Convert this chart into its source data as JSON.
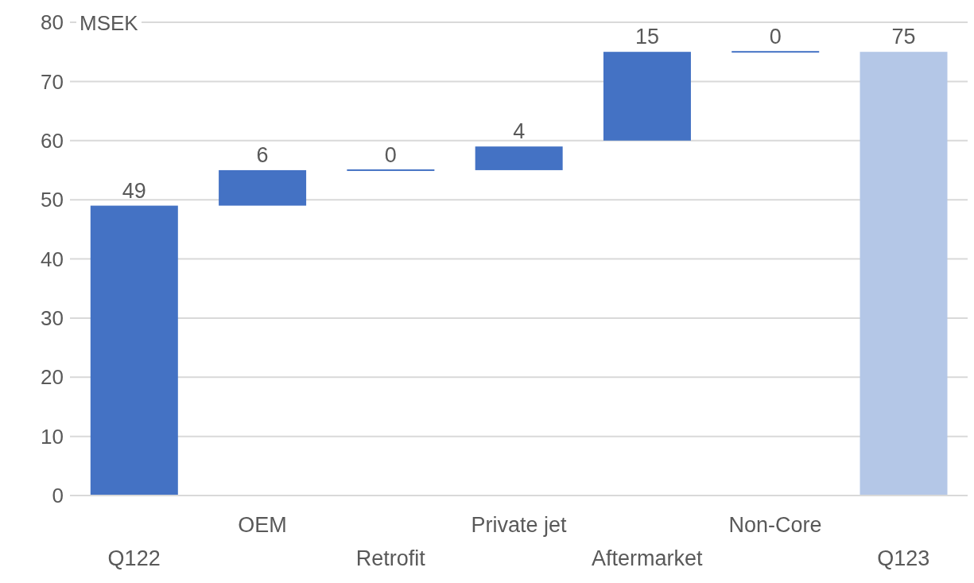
{
  "chart_data": {
    "type": "bar",
    "ylabel": "MSEK",
    "categories": [
      "Q122",
      "OEM",
      "Retrofit",
      "Private jet",
      "Aftermarket",
      "Non-Core",
      "Q123"
    ],
    "values": [
      49,
      6,
      0,
      4,
      15,
      0,
      75
    ],
    "base": [
      0,
      49,
      55,
      55,
      60,
      75,
      0
    ],
    "colors": [
      "#4472c4",
      "#4472c4",
      "#4472c4",
      "#4472c4",
      "#4472c4",
      "#4472c4",
      "#b4c7e7"
    ],
    "ylim": [
      0,
      80
    ],
    "yticks": [
      0,
      10,
      20,
      30,
      40,
      50,
      60,
      70,
      80
    ],
    "grid": "y",
    "data_labels": true
  }
}
